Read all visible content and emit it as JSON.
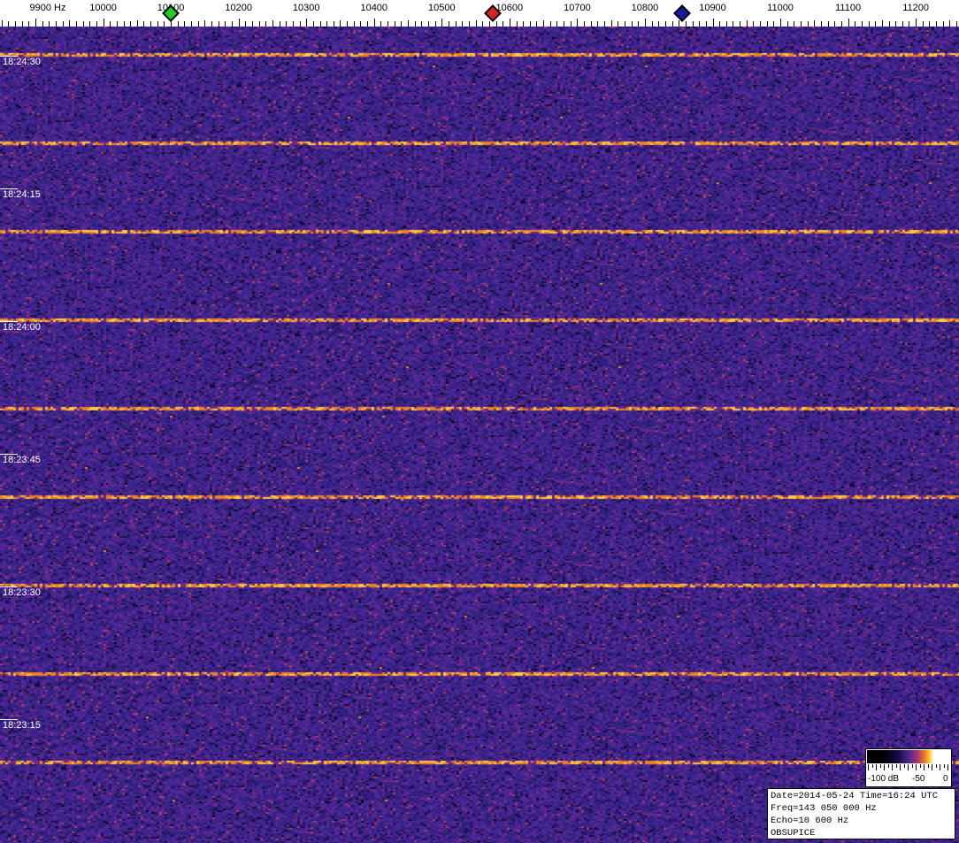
{
  "chart_data": {
    "type": "heatmap",
    "title": "",
    "x_axis": {
      "unit_label": "Hz",
      "tick_labels": [
        "9900 Hz",
        "10000",
        "10100",
        "10200",
        "10300",
        "10400",
        "10500",
        "10600",
        "10700",
        "10800",
        "10900",
        "11000",
        "11100",
        "11200"
      ],
      "ticks": [
        9900,
        10000,
        10100,
        10200,
        10300,
        10400,
        10500,
        10600,
        10700,
        10800,
        10900,
        11000,
        11100,
        11200
      ],
      "range": [
        9850,
        11265
      ]
    },
    "y_axis": {
      "tick_labels": [
        "18:24:30",
        "18:24:15",
        "18:24:00",
        "18:23:45",
        "18:23:30",
        "18:23:15"
      ],
      "direction": "time decreasing downward"
    },
    "markers": [
      {
        "color": "#22cc22",
        "freq": 10100
      },
      {
        "color": "#dd2222",
        "freq": 10575
      },
      {
        "color": "#1a1aa0",
        "freq": 10855
      }
    ],
    "horizontal_lines_interval_s": 10,
    "colorbar": {
      "labels": [
        "-100 dB",
        "-50",
        "0"
      ],
      "range_db": [
        -100,
        0
      ]
    },
    "colors": {
      "background": "#3a1c78",
      "line": "#f0a030"
    }
  },
  "info": {
    "line1": "Date=2014-05-24 Time=16:24 UTC",
    "line2": "Freq=143 050 000 Hz",
    "line3": "Echo=10 600 Hz",
    "line4": "OBSUPICE"
  }
}
